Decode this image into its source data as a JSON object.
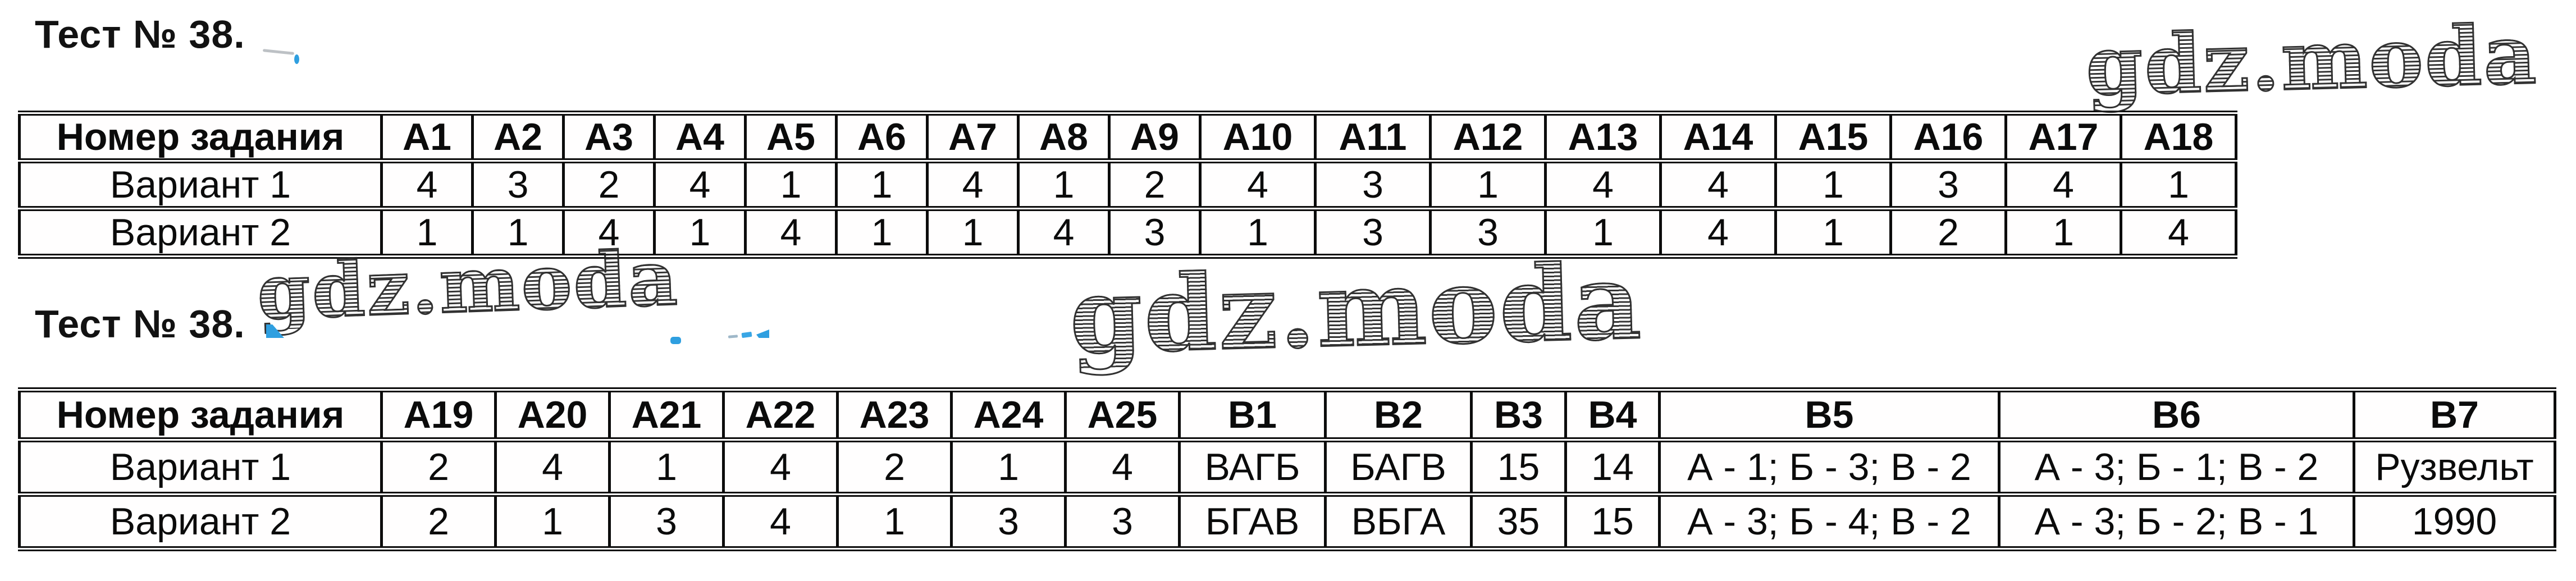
{
  "titles": {
    "first": "Тест № 38.",
    "second": "Тест № 38."
  },
  "watermark": {
    "text": "gdz.moda"
  },
  "colors": {
    "text": "#0b0b0b",
    "border": "#0c0c0c",
    "artifact_blue": "#2f9fe0"
  },
  "table1": {
    "header": [
      "Номер задания",
      "А1",
      "А2",
      "А3",
      "А4",
      "А5",
      "А6",
      "А7",
      "А8",
      "А9",
      "А10",
      "А11",
      "А12",
      "А13",
      "А14",
      "А15",
      "А16",
      "А17",
      "А18"
    ],
    "rows": [
      {
        "label": "Вариант 1",
        "values": [
          "4",
          "3",
          "2",
          "4",
          "1",
          "1",
          "4",
          "1",
          "2",
          "4",
          "3",
          "1",
          "4",
          "4",
          "1",
          "3",
          "4",
          "1"
        ]
      },
      {
        "label": "Вариант 2",
        "values": [
          "1",
          "1",
          "4",
          "1",
          "4",
          "1",
          "1",
          "4",
          "3",
          "1",
          "3",
          "3",
          "1",
          "4",
          "1",
          "2",
          "1",
          "4"
        ]
      }
    ]
  },
  "table2": {
    "header": [
      "Номер задания",
      "А19",
      "А20",
      "А21",
      "А22",
      "А23",
      "А24",
      "А25",
      "В1",
      "В2",
      "В3",
      "В4",
      "В5",
      "В6",
      "В7"
    ],
    "rows": [
      {
        "label": "Вариант 1",
        "values": [
          "2",
          "4",
          "1",
          "4",
          "2",
          "1",
          "4",
          "ВАГБ",
          "БАГВ",
          "15",
          "14",
          "А - 1; Б - 3; В - 2",
          "А - 3; Б - 1; В - 2",
          "Рузвельт"
        ]
      },
      {
        "label": "Вариант 2",
        "values": [
          "2",
          "1",
          "3",
          "4",
          "1",
          "3",
          "3",
          "БГАВ",
          "ВБГА",
          "35",
          "15",
          "А - 3; Б - 4; В - 2",
          "А - 3; Б - 2; В - 1",
          "1990"
        ]
      }
    ]
  }
}
